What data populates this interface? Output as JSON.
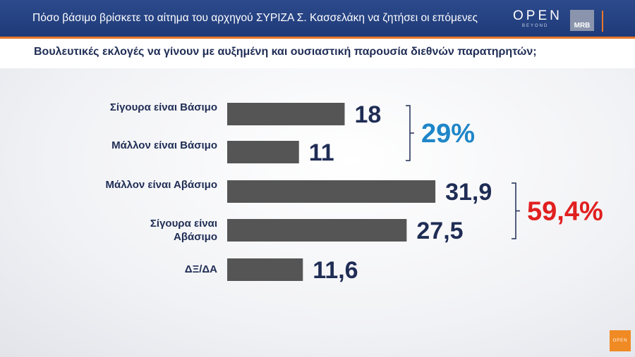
{
  "header": {
    "title": "Πόσο βάσιμο βρίσκετε το αίτημα του αρχηγού ΣΥΡΙΖΑ Σ. Κασσελάκη να ζητήσει οι επόμενες",
    "logo": "OPEN",
    "logo_tagline": "BEYOND",
    "pollster": "MRB",
    "corner_logo": "OPEN"
  },
  "chart_data": {
    "type": "hbar",
    "title": "Βουλευτικές εκλογές να γίνουν με αυξημένη και ουσιαστική παρουσία διεθνών παρατηρητών;",
    "categories": [
      "Σίγουρα είναι Βάσιμο",
      "Μάλλον είναι Βάσιμο",
      "Μάλλον είναι Αβάσιμο",
      "Σίγουρα είναι Αβάσιμο",
      "ΔΞ/ΔΑ"
    ],
    "values": [
      18,
      11,
      31.9,
      27.5,
      11.6
    ],
    "value_labels": [
      "18",
      "11",
      "31,9",
      "27,5",
      "11,6"
    ],
    "color": "#555555",
    "annotations": [
      {
        "text": "29%",
        "value": 29,
        "color": "#1f86c8"
      },
      {
        "text": "59,4%",
        "value": 59.4,
        "color": "#e0201f"
      }
    ]
  }
}
